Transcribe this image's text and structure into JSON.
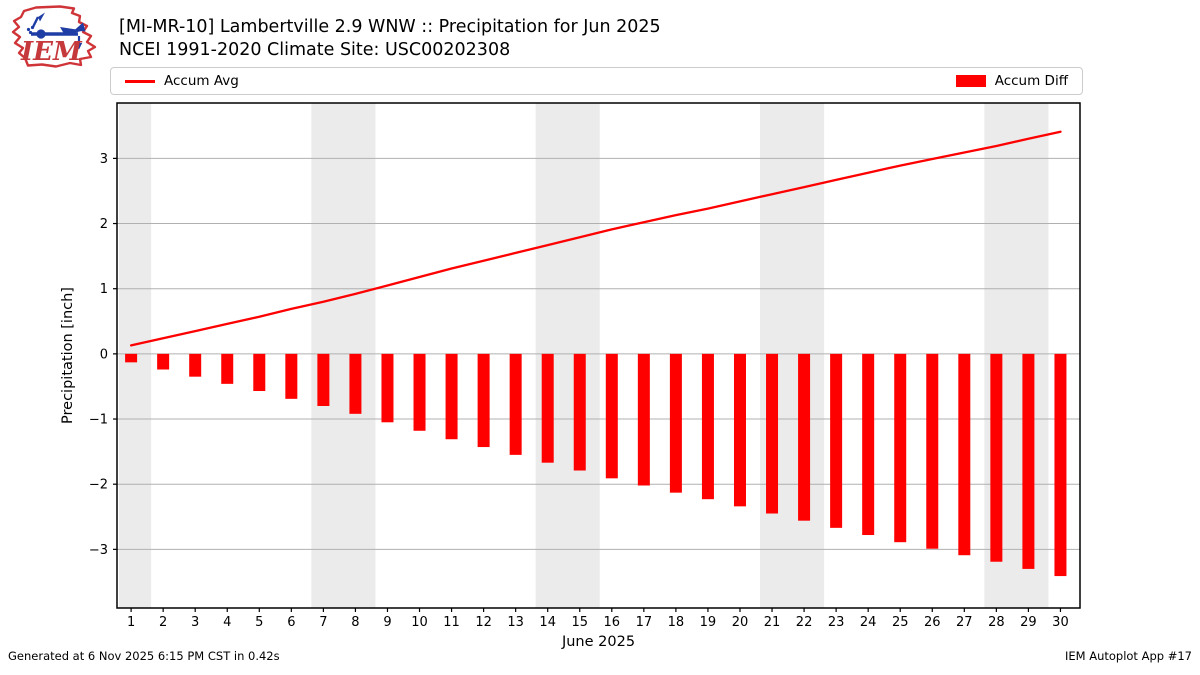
{
  "header": {
    "title_line1": "[MI-MR-10] Lambertville 2.9 WNW :: Precipitation for Jun 2025",
    "title_line2": "NCEI 1991-2020 Climate Site: USC00202308",
    "logo_text": "IEM"
  },
  "legend": {
    "avg_label": "Accum Avg",
    "diff_label": "Accum Diff"
  },
  "footer": {
    "left": "Generated at 6 Nov 2025 6:15 PM CST in 0.42s",
    "right": "IEM Autoplot App #17"
  },
  "colors": {
    "series_red": "#ff0000",
    "weekend_band": "#ebebeb",
    "gridline": "#b0b0b0",
    "axis_border": "#000000",
    "legend_border": "#cccccc",
    "logo_red": "#cf3438",
    "logo_blue": "#1f3ea5"
  },
  "chart_data": {
    "type": "bar",
    "title": "[MI-MR-10] Lambertville 2.9 WNW :: Precipitation for Jun 2025",
    "subtitle": "NCEI 1991-2020 Climate Site: USC00202308",
    "xlabel": "June 2025",
    "ylabel": "Precipitation [inch]",
    "x": [
      1,
      2,
      3,
      4,
      5,
      6,
      7,
      8,
      9,
      10,
      11,
      12,
      13,
      14,
      15,
      16,
      17,
      18,
      19,
      20,
      21,
      22,
      23,
      24,
      25,
      26,
      27,
      28,
      29,
      30
    ],
    "series": [
      {
        "name": "Accum Avg",
        "type": "line",
        "color": "#ff0000",
        "values": [
          0.13,
          0.24,
          0.35,
          0.46,
          0.57,
          0.69,
          0.8,
          0.92,
          1.05,
          1.18,
          1.31,
          1.43,
          1.55,
          1.67,
          1.79,
          1.91,
          2.02,
          2.13,
          2.23,
          2.34,
          2.45,
          2.56,
          2.67,
          2.78,
          2.89,
          2.99,
          3.09,
          3.19,
          3.3,
          3.41
        ]
      },
      {
        "name": "Accum Diff",
        "type": "bar",
        "color": "#ff0000",
        "values": [
          -0.13,
          -0.24,
          -0.35,
          -0.46,
          -0.57,
          -0.69,
          -0.8,
          -0.92,
          -1.05,
          -1.18,
          -1.31,
          -1.43,
          -1.55,
          -1.67,
          -1.79,
          -1.91,
          -2.02,
          -2.13,
          -2.23,
          -2.34,
          -2.45,
          -2.56,
          -2.67,
          -2.78,
          -2.89,
          -2.99,
          -3.09,
          -3.19,
          -3.3,
          -3.41
        ]
      }
    ],
    "xticks": [
      1,
      2,
      3,
      4,
      5,
      6,
      7,
      8,
      9,
      10,
      11,
      12,
      13,
      14,
      15,
      16,
      17,
      18,
      19,
      20,
      21,
      22,
      23,
      24,
      25,
      26,
      27,
      28,
      29,
      30
    ],
    "yticks": [
      -3,
      -2,
      -1,
      0,
      1,
      2,
      3
    ],
    "xlim": [
      0.56,
      30.61
    ],
    "ylim": [
      -3.9,
      3.85
    ],
    "grid": true,
    "legend_position": "top",
    "weekend_bands": [
      [
        1,
        1
      ],
      [
        7,
        8
      ],
      [
        14,
        15
      ],
      [
        21,
        22
      ],
      [
        28,
        29
      ]
    ]
  }
}
